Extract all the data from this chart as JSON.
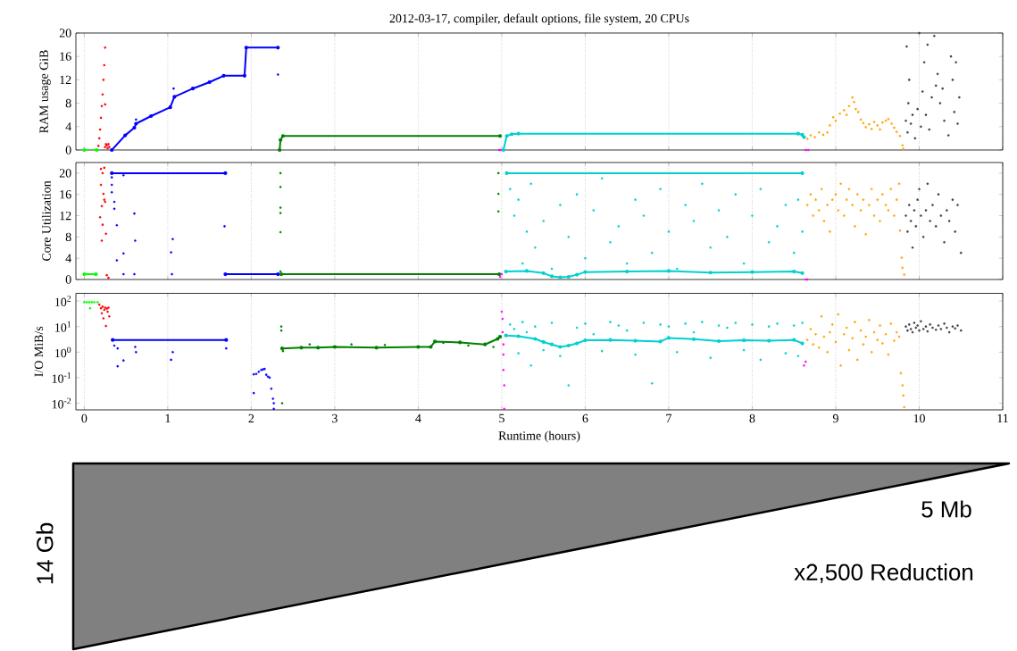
{
  "chart_data": [
    {
      "type": "scatter",
      "title": "2012-03-17, compiler, default options, file system, 20 CPUs",
      "ylabel": "RAM usage GiB",
      "xlim": [
        -0.1,
        11
      ],
      "xticks": [
        0,
        1,
        2,
        3,
        4,
        5,
        6,
        7,
        8,
        9,
        10,
        11
      ],
      "ylim": [
        0,
        20
      ],
      "yticks": [
        0,
        4,
        8,
        12,
        16,
        20
      ],
      "grid": "x",
      "marker": "circle",
      "tick_labels": "y",
      "series": [
        {
          "type": "line",
          "color": "#00ff00",
          "x": [
            0,
            0.15
          ],
          "values": [
            0,
            0
          ]
        },
        {
          "color": "#ff0000",
          "x": [
            0.17,
            0.18,
            0.19,
            0.2,
            0.21,
            0.22,
            0.23,
            0.24,
            0.25,
            0.25,
            0.25,
            0.26,
            0.27,
            0.28,
            0.29,
            0.3
          ],
          "values": [
            0.7,
            2,
            3.5,
            5.5,
            7.5,
            9.5,
            12,
            14.5,
            17.5,
            7.8,
            0.5,
            1,
            0.8,
            0.3,
            1,
            0.5
          ]
        },
        {
          "type": "line",
          "color": "#0000ff",
          "x": [
            0.33,
            0.49,
            0.6,
            0.62,
            0.8,
            1.03,
            1.08,
            1.3,
            1.5,
            1.67,
            1.92,
            1.94,
            2.32
          ],
          "values": [
            0,
            2.5,
            3.8,
            4.5,
            5.8,
            7.3,
            9.1,
            10.5,
            11.6,
            12.7,
            12.7,
            17.5,
            17.5
          ]
        },
        {
          "color": "#0000ff",
          "x": [
            0.62,
            1.07,
            2.32
          ],
          "values": [
            5.2,
            10.5,
            12.9
          ]
        },
        {
          "type": "line",
          "color": "#008000",
          "x": [
            2.34,
            2.35,
            2.38,
            4.98
          ],
          "values": [
            0,
            1.7,
            2.4,
            2.4
          ]
        },
        {
          "color": "#ff00ff",
          "x": [
            4.97,
            4.99,
            8.64,
            8.67
          ],
          "values": [
            0,
            0,
            0,
            0
          ]
        },
        {
          "type": "line",
          "color": "#00d0d0",
          "x": [
            5.02,
            5.06,
            5.12,
            5.2,
            8.55,
            8.6,
            8.62
          ],
          "values": [
            0,
            2.4,
            2.7,
            2.8,
            2.8,
            2.6,
            2.2
          ]
        },
        {
          "color": "#ffa500",
          "x": [
            8.66,
            8.7,
            8.75,
            8.8,
            8.85,
            8.9,
            8.93,
            8.97,
            9.0,
            9.05,
            9.1,
            9.13,
            9.16,
            9.2,
            9.22,
            9.24,
            9.27,
            9.3,
            9.33,
            9.36,
            9.4,
            9.43,
            9.46,
            9.5,
            9.53,
            9.56,
            9.6,
            9.63,
            9.67,
            9.7,
            9.73,
            9.77,
            9.8,
            9.81
          ],
          "values": [
            1.9,
            2.5,
            2.2,
            3.0,
            2.6,
            3.0,
            4.2,
            5.6,
            5.0,
            6.2,
            6.8,
            6.0,
            7.5,
            9.0,
            8.2,
            7.0,
            6.5,
            5.2,
            4.6,
            3.9,
            4.4,
            3.6,
            4.8,
            4.2,
            3.5,
            4.7,
            5.0,
            5.3,
            4.5,
            3.8,
            3.1,
            2.4,
            0.8,
            0.2
          ]
        },
        {
          "color": "#404040",
          "x": [
            9.84,
            9.85,
            9.86,
            9.87,
            9.88,
            9.9,
            9.92,
            9.95,
            9.98,
            10.0,
            10.02,
            10.04,
            10.06,
            10.08,
            10.1,
            10.12,
            10.15,
            10.18,
            10.2,
            10.22,
            10.25,
            10.28,
            10.3,
            10.35,
            10.38,
            10.4,
            10.42,
            10.44,
            10.46,
            10.48
          ],
          "values": [
            5,
            17.7,
            3,
            8,
            12,
            4.5,
            6,
            2,
            7,
            20,
            4,
            10,
            15,
            6,
            18,
            3.5,
            9,
            19.5,
            11,
            13,
            8,
            10.5,
            5,
            2.5,
            16,
            12,
            6.5,
            15,
            4.5,
            9
          ]
        }
      ]
    },
    {
      "type": "scatter",
      "ylabel": "Core Utilization",
      "xlim": [
        -0.1,
        11
      ],
      "xticks": [
        0,
        1,
        2,
        3,
        4,
        5,
        6,
        7,
        8,
        9,
        10,
        11
      ],
      "ylim": [
        0,
        22
      ],
      "yticks": [
        0,
        4,
        8,
        12,
        16,
        20
      ],
      "grid": "x",
      "marker": "circle",
      "tick_labels": "y",
      "series": [
        {
          "type": "line",
          "color": "#00ff00",
          "x": [
            0,
            0.14
          ],
          "values": [
            1,
            1
          ]
        },
        {
          "color": "#ff0000",
          "x": [
            0.2,
            0.22,
            0.24,
            0.2,
            0.23,
            0.25,
            0.21,
            0.24,
            0.19,
            0.22,
            0.26,
            0.21,
            0.27,
            0.29
          ],
          "values": [
            20.8,
            20,
            21,
            17.8,
            16.1,
            14.6,
            13.8,
            15,
            11.7,
            10.3,
            8.6,
            7.3,
            0.8,
            0.3
          ]
        },
        {
          "type": "line",
          "color": "#0000ff",
          "x": [
            0.33,
            1.69
          ],
          "values": [
            20,
            20
          ]
        },
        {
          "type": "line",
          "color": "#0000ff",
          "x": [
            1.69,
            2.32
          ],
          "values": [
            1,
            1
          ]
        },
        {
          "color": "#0000ff",
          "x": [
            0.33,
            0.47,
            0.33,
            0.33,
            0.36,
            0.36,
            0.6,
            0.39,
            1.68,
            0.61,
            1.06,
            0.47,
            1.04,
            0.39,
            0.47,
            0.6,
            1.05
          ],
          "values": [
            19.2,
            19.6,
            17.8,
            16.4,
            14.6,
            13.3,
            12.4,
            10.2,
            10.0,
            7.3,
            7.6,
            4.9,
            5.1,
            3.6,
            1,
            1,
            1
          ]
        },
        {
          "type": "line",
          "color": "#008000",
          "x": [
            2.36,
            4.97
          ],
          "values": [
            1,
            1
          ]
        },
        {
          "color": "#008000",
          "x": [
            2.35,
            2.35,
            2.35,
            2.35,
            2.35,
            2.35,
            4.96,
            4.96,
            4.96
          ],
          "values": [
            20,
            17.4,
            13.5,
            12.5,
            8.9,
            1.5,
            20,
            16.1,
            12.8
          ]
        },
        {
          "color": "#ff00ff",
          "x": [
            4.98,
            5.0,
            8.64,
            8.66
          ],
          "values": [
            0.5,
            1,
            0,
            0
          ]
        },
        {
          "type": "line",
          "color": "#00d0d0",
          "x": [
            5.06,
            8.6
          ],
          "values": [
            20,
            20
          ]
        },
        {
          "type": "line",
          "color": "#00d0d0",
          "x": [
            5.05,
            5.3,
            5.5,
            5.6,
            5.7,
            5.8,
            5.9,
            6.0,
            6.5,
            7.0,
            7.5,
            8.0,
            8.5,
            8.6
          ],
          "values": [
            1.5,
            1.6,
            1.2,
            0.6,
            0.4,
            0.5,
            0.9,
            1.4,
            1.5,
            1.6,
            1.3,
            1.4,
            1.5,
            1.2
          ]
        },
        {
          "color": "#00d0d0",
          "x": [
            5.1,
            5.15,
            5.2,
            5.25,
            5.3,
            5.35,
            5.4,
            5.5,
            5.6,
            5.7,
            5.8,
            5.9,
            6.0,
            6.1,
            6.2,
            6.3,
            6.4,
            6.5,
            6.6,
            6.7,
            6.8,
            6.9,
            7.0,
            7.1,
            7.2,
            7.3,
            7.4,
            7.5,
            7.6,
            7.7,
            7.8,
            7.9,
            8.0,
            8.1,
            8.2,
            8.3,
            8.4,
            8.5,
            8.55,
            8.6
          ],
          "values": [
            17,
            12,
            15,
            3,
            9,
            18,
            6,
            11,
            2,
            14,
            8,
            16,
            4,
            13,
            19,
            7,
            10,
            3,
            15,
            12,
            5,
            17,
            9,
            2,
            14,
            11,
            18,
            6,
            13,
            8,
            16,
            3,
            12,
            17,
            7,
            10,
            14,
            5,
            15,
            9
          ]
        },
        {
          "color": "#ffa500",
          "x": [
            8.66,
            8.7,
            8.73,
            8.76,
            8.8,
            8.83,
            8.86,
            8.9,
            8.93,
            8.96,
            9.0,
            9.03,
            9.06,
            9.1,
            9.13,
            9.16,
            9.2,
            9.23,
            9.26,
            9.3,
            9.33,
            9.36,
            9.4,
            9.43,
            9.46,
            9.5,
            9.53,
            9.56,
            9.6,
            9.63,
            9.66,
            9.7,
            9.73,
            9.76,
            9.77,
            9.79,
            9.8,
            9.82
          ],
          "values": [
            14,
            16,
            12,
            15,
            13,
            17,
            11,
            14,
            9,
            15,
            16,
            13,
            18,
            12,
            15,
            17,
            14,
            10,
            16,
            13,
            15,
            8.5,
            14,
            17,
            12,
            15,
            11,
            16,
            14,
            13,
            17,
            12,
            15,
            18,
            9.2,
            4.1,
            2.2,
            0.9
          ]
        },
        {
          "color": "#404040",
          "x": [
            9.84,
            9.86,
            9.88,
            9.9,
            9.92,
            9.94,
            9.96,
            9.98,
            10.0,
            10.02,
            10.05,
            10.08,
            10.1,
            10.13,
            10.16,
            10.2,
            10.23,
            10.26,
            10.3,
            10.33,
            10.36,
            10.4,
            10.43,
            10.46,
            10.5
          ],
          "values": [
            12,
            9,
            14,
            11,
            6,
            13,
            10,
            15,
            17,
            12,
            8,
            13,
            18,
            11,
            14,
            10,
            16,
            12,
            7,
            13,
            11,
            15,
            9,
            14,
            5
          ]
        }
      ]
    },
    {
      "type": "scatter",
      "ylabel": "I/O MiB/s",
      "xlabel": "Runtime (hours)",
      "log": "y",
      "xlim": [
        -0.1,
        11
      ],
      "xticks": [
        0,
        1,
        2,
        3,
        4,
        5,
        6,
        7,
        8,
        9,
        10,
        11
      ],
      "ylim": [
        0.0055,
        200
      ],
      "yticks": [
        {
          "value": 0.01,
          "label": "10$^{-2}$"
        },
        {
          "value": 0.1,
          "label": "10$^{-1}$"
        },
        {
          "value": 1,
          "label": "10$^{0}$"
        },
        {
          "value": 10,
          "label": "10$^{1}$"
        },
        {
          "value": 100,
          "label": "10$^{2}$"
        }
      ],
      "grid": "x",
      "marker": "circle",
      "annotations": [
        "14 Gb",
        "5 Mb",
        "x2,500 Reduction"
      ],
      "series": [
        {
          "color": "#00ff00",
          "x": [
            0,
            0.03,
            0.06,
            0.07,
            0.09,
            0.12,
            0.16
          ],
          "values": [
            90,
            90,
            90,
            52,
            90,
            90,
            90
          ]
        },
        {
          "color": "#ff0000",
          "x": [
            0.18,
            0.2,
            0.21,
            0.22,
            0.23,
            0.24,
            0.25,
            0.26,
            0.27,
            0.28,
            0.29,
            0.3
          ],
          "values": [
            72,
            52,
            33,
            60,
            21,
            45,
            55,
            10.5,
            50,
            38,
            55,
            25
          ]
        },
        {
          "type": "line",
          "color": "#0000ff",
          "x": [
            0.34,
            1.7
          ],
          "values": [
            3,
            3
          ]
        },
        {
          "color": "#0000ff",
          "x": [
            0.36,
            0.4,
            0.4,
            0.47,
            0.61,
            0.62,
            1.04,
            1.06,
            1.7,
            2.03,
            2.03,
            2.06,
            2.09,
            2.12,
            2.14,
            2.16,
            2.18,
            2.2,
            2.22,
            2.24,
            2.26,
            2.27,
            2.27
          ],
          "values": [
            1.8,
            1.4,
            0.28,
            0.47,
            1.6,
            1.0,
            0.5,
            1.0,
            1.4,
            0.025,
            0.135,
            0.14,
            0.17,
            0.2,
            0.21,
            0.22,
            0.13,
            0.11,
            0.1,
            0.037,
            0.015,
            0.01,
            0.006
          ]
        },
        {
          "type": "line",
          "color": "#008000",
          "x": [
            2.37,
            2.6,
            2.8,
            3.0,
            3.5,
            4.0,
            4.15,
            4.2,
            4.5,
            4.8,
            4.95,
            4.98
          ],
          "values": [
            1.4,
            1.5,
            1.5,
            1.6,
            1.5,
            1.6,
            1.6,
            2.6,
            2.4,
            2.0,
            3.3,
            4.0
          ]
        },
        {
          "color": "#008000",
          "x": [
            2.36,
            2.36,
            2.37,
            2.38,
            2.7,
            3.2,
            3.6,
            4.3,
            4.6,
            4.9
          ],
          "values": [
            10,
            7,
            0.01,
            1.1,
            2.0,
            2.0,
            1.9,
            2.3,
            1.8,
            1.6
          ]
        },
        {
          "color": "#ff00ff",
          "x": [
            5.0,
            5.01,
            5.01,
            5.02,
            5.02,
            5.02,
            5.03,
            5.03,
            8.62,
            8.64
          ],
          "values": [
            38,
            20,
            6,
            2,
            0.8,
            0.2,
            0.05,
            0.006,
            0.3,
            0.42
          ]
        },
        {
          "type": "line",
          "color": "#00d0d0",
          "x": [
            5.05,
            5.2,
            5.4,
            5.5,
            5.6,
            5.7,
            5.8,
            5.9,
            6.0,
            6.3,
            6.6,
            6.9,
            7.0,
            7.3,
            7.6,
            7.9,
            8.2,
            8.5,
            8.6
          ],
          "values": [
            4.5,
            4.2,
            3.3,
            2.5,
            2.0,
            1.6,
            1.8,
            2.2,
            2.9,
            3.0,
            2.8,
            2.6,
            3.6,
            3.2,
            2.7,
            2.9,
            2.8,
            3.0,
            2.2
          ]
        },
        {
          "color": "#00d0d0",
          "x": [
            5.1,
            5.15,
            5.2,
            5.25,
            5.3,
            5.35,
            5.4,
            5.5,
            5.6,
            5.7,
            5.8,
            5.9,
            6.0,
            6.1,
            6.2,
            6.3,
            6.4,
            6.5,
            6.6,
            6.7,
            6.8,
            6.9,
            7.0,
            7.1,
            7.2,
            7.3,
            7.4,
            7.5,
            7.6,
            7.7,
            7.8,
            7.9,
            8.0,
            8.1,
            8.2,
            8.3,
            8.4,
            8.5,
            8.55,
            8.6
          ],
          "values": [
            12,
            8,
            0.9,
            15,
            6,
            0.3,
            10,
            1.2,
            14,
            0.7,
            0.05,
            9,
            13,
            5,
            1.1,
            15,
            11,
            7,
            0.8,
            14,
            0.06,
            12,
            10,
            1.0,
            13,
            6,
            15,
            0.6,
            11,
            9,
            14,
            1.2,
            12,
            0.5,
            10,
            13,
            0.9,
            11,
            0.7,
            14
          ]
        },
        {
          "color": "#ffa500",
          "x": [
            8.66,
            8.7,
            8.73,
            8.76,
            8.8,
            8.83,
            8.86,
            8.9,
            8.93,
            8.96,
            9.0,
            9.03,
            9.06,
            9.1,
            9.13,
            9.16,
            9.2,
            9.23,
            9.26,
            9.3,
            9.33,
            9.36,
            9.4,
            9.43,
            9.46,
            9.5,
            9.53,
            9.56,
            9.6,
            9.63,
            9.66,
            9.7,
            9.73,
            9.76,
            9.78,
            9.8,
            9.81,
            9.82
          ],
          "values": [
            3,
            8,
            2,
            5,
            1.5,
            25,
            4,
            1,
            6,
            12,
            2.5,
            30,
            0.3,
            5,
            9,
            1.2,
            3.5,
            15,
            0.5,
            7,
            2,
            4,
            18,
            1,
            6,
            3,
            11,
            2.2,
            5,
            0.8,
            13,
            2.8,
            6,
            4,
            0.15,
            0.05,
            0.02,
            0.007
          ]
        },
        {
          "color": "#404040",
          "x": [
            9.84,
            9.86,
            9.88,
            9.9,
            9.92,
            9.94,
            9.96,
            9.98,
            10.0,
            10.02,
            10.05,
            10.08,
            10.1,
            10.13,
            10.16,
            10.2,
            10.23,
            10.26,
            10.3,
            10.33,
            10.36,
            10.4,
            10.43,
            10.46,
            10.5
          ],
          "values": [
            10,
            7,
            12,
            8,
            6,
            14,
            9,
            11,
            7,
            16,
            8,
            10,
            6.5,
            12,
            9,
            7.5,
            11,
            8,
            13,
            9,
            6,
            10,
            8.5,
            11,
            7
          ]
        }
      ]
    }
  ]
}
